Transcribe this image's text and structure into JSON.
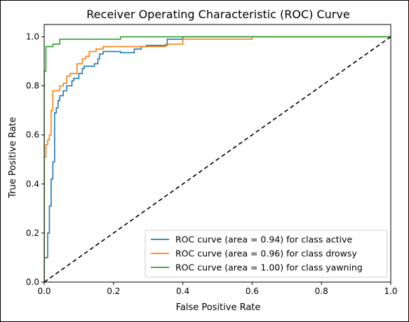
{
  "chart_data": {
    "type": "line",
    "title": "Receiver Operating Characteristic (ROC) Curve",
    "xlabel": "False Positive Rate",
    "ylabel": "True Positive Rate",
    "xlim": [
      0.0,
      1.0
    ],
    "ylim": [
      0.0,
      1.05
    ],
    "xticks": [
      "0.0",
      "0.2",
      "0.4",
      "0.6",
      "0.8",
      "1.0"
    ],
    "yticks": [
      "0.0",
      "0.2",
      "0.4",
      "0.6",
      "0.8",
      "1.0"
    ],
    "grid": false,
    "legend_position": "lower-right",
    "series": [
      {
        "name": "ROC curve (area = 0.94) for class active",
        "color": "#1f77b4",
        "points": [
          [
            0.0,
            0.0
          ],
          [
            0.0,
            0.1
          ],
          [
            0.01,
            0.1
          ],
          [
            0.01,
            0.2
          ],
          [
            0.015,
            0.2
          ],
          [
            0.015,
            0.31
          ],
          [
            0.02,
            0.31
          ],
          [
            0.02,
            0.42
          ],
          [
            0.025,
            0.42
          ],
          [
            0.025,
            0.49
          ],
          [
            0.03,
            0.49
          ],
          [
            0.03,
            0.69
          ],
          [
            0.035,
            0.69
          ],
          [
            0.035,
            0.71
          ],
          [
            0.04,
            0.71
          ],
          [
            0.04,
            0.74
          ],
          [
            0.045,
            0.74
          ],
          [
            0.045,
            0.76
          ],
          [
            0.055,
            0.76
          ],
          [
            0.055,
            0.78
          ],
          [
            0.065,
            0.78
          ],
          [
            0.065,
            0.8
          ],
          [
            0.08,
            0.8
          ],
          [
            0.08,
            0.82
          ],
          [
            0.085,
            0.82
          ],
          [
            0.085,
            0.83
          ],
          [
            0.1,
            0.83
          ],
          [
            0.1,
            0.85
          ],
          [
            0.11,
            0.85
          ],
          [
            0.11,
            0.87
          ],
          [
            0.115,
            0.87
          ],
          [
            0.115,
            0.88
          ],
          [
            0.145,
            0.88
          ],
          [
            0.145,
            0.89
          ],
          [
            0.155,
            0.89
          ],
          [
            0.155,
            0.91
          ],
          [
            0.16,
            0.91
          ],
          [
            0.16,
            0.93
          ],
          [
            0.17,
            0.93
          ],
          [
            0.17,
            0.94
          ],
          [
            0.22,
            0.94
          ],
          [
            0.22,
            0.935
          ],
          [
            0.26,
            0.935
          ],
          [
            0.26,
            0.95
          ],
          [
            0.28,
            0.95
          ],
          [
            0.28,
            0.96
          ],
          [
            0.295,
            0.96
          ],
          [
            0.295,
            0.965
          ],
          [
            0.355,
            0.965
          ],
          [
            0.355,
            0.99
          ],
          [
            0.4,
            0.99
          ],
          [
            0.4,
            1.0
          ],
          [
            1.0,
            1.0
          ]
        ]
      },
      {
        "name": "ROC curve (area = 0.96) for class drowsy",
        "color": "#ff7f0e",
        "points": [
          [
            0.0,
            0.0
          ],
          [
            0.0,
            0.51
          ],
          [
            0.005,
            0.51
          ],
          [
            0.005,
            0.56
          ],
          [
            0.01,
            0.56
          ],
          [
            0.01,
            0.58
          ],
          [
            0.015,
            0.58
          ],
          [
            0.015,
            0.6
          ],
          [
            0.02,
            0.6
          ],
          [
            0.02,
            0.7
          ],
          [
            0.025,
            0.7
          ],
          [
            0.025,
            0.78
          ],
          [
            0.045,
            0.78
          ],
          [
            0.045,
            0.8
          ],
          [
            0.055,
            0.8
          ],
          [
            0.055,
            0.81
          ],
          [
            0.065,
            0.81
          ],
          [
            0.065,
            0.84
          ],
          [
            0.075,
            0.84
          ],
          [
            0.075,
            0.85
          ],
          [
            0.095,
            0.85
          ],
          [
            0.095,
            0.89
          ],
          [
            0.11,
            0.89
          ],
          [
            0.11,
            0.91
          ],
          [
            0.12,
            0.91
          ],
          [
            0.12,
            0.92
          ],
          [
            0.13,
            0.92
          ],
          [
            0.13,
            0.94
          ],
          [
            0.15,
            0.94
          ],
          [
            0.15,
            0.95
          ],
          [
            0.17,
            0.95
          ],
          [
            0.17,
            0.96
          ],
          [
            0.35,
            0.96
          ],
          [
            0.35,
            0.97
          ],
          [
            0.4,
            0.97
          ],
          [
            0.4,
            0.99
          ],
          [
            0.6,
            0.99
          ],
          [
            0.6,
            1.0
          ],
          [
            1.0,
            1.0
          ]
        ]
      },
      {
        "name": "ROC curve (area = 1.00) for class yawning",
        "color": "#2ca02c",
        "points": [
          [
            0.0,
            0.0
          ],
          [
            0.0,
            0.86
          ],
          [
            0.005,
            0.86
          ],
          [
            0.005,
            0.96
          ],
          [
            0.025,
            0.96
          ],
          [
            0.025,
            0.97
          ],
          [
            0.045,
            0.97
          ],
          [
            0.045,
            0.99
          ],
          [
            0.22,
            0.99
          ],
          [
            0.22,
            1.0
          ],
          [
            1.0,
            1.0
          ]
        ]
      },
      {
        "name": "",
        "color": "#000000",
        "style": "dashed",
        "points": [
          [
            0.0,
            0.0
          ],
          [
            1.0,
            1.0
          ]
        ]
      }
    ]
  }
}
